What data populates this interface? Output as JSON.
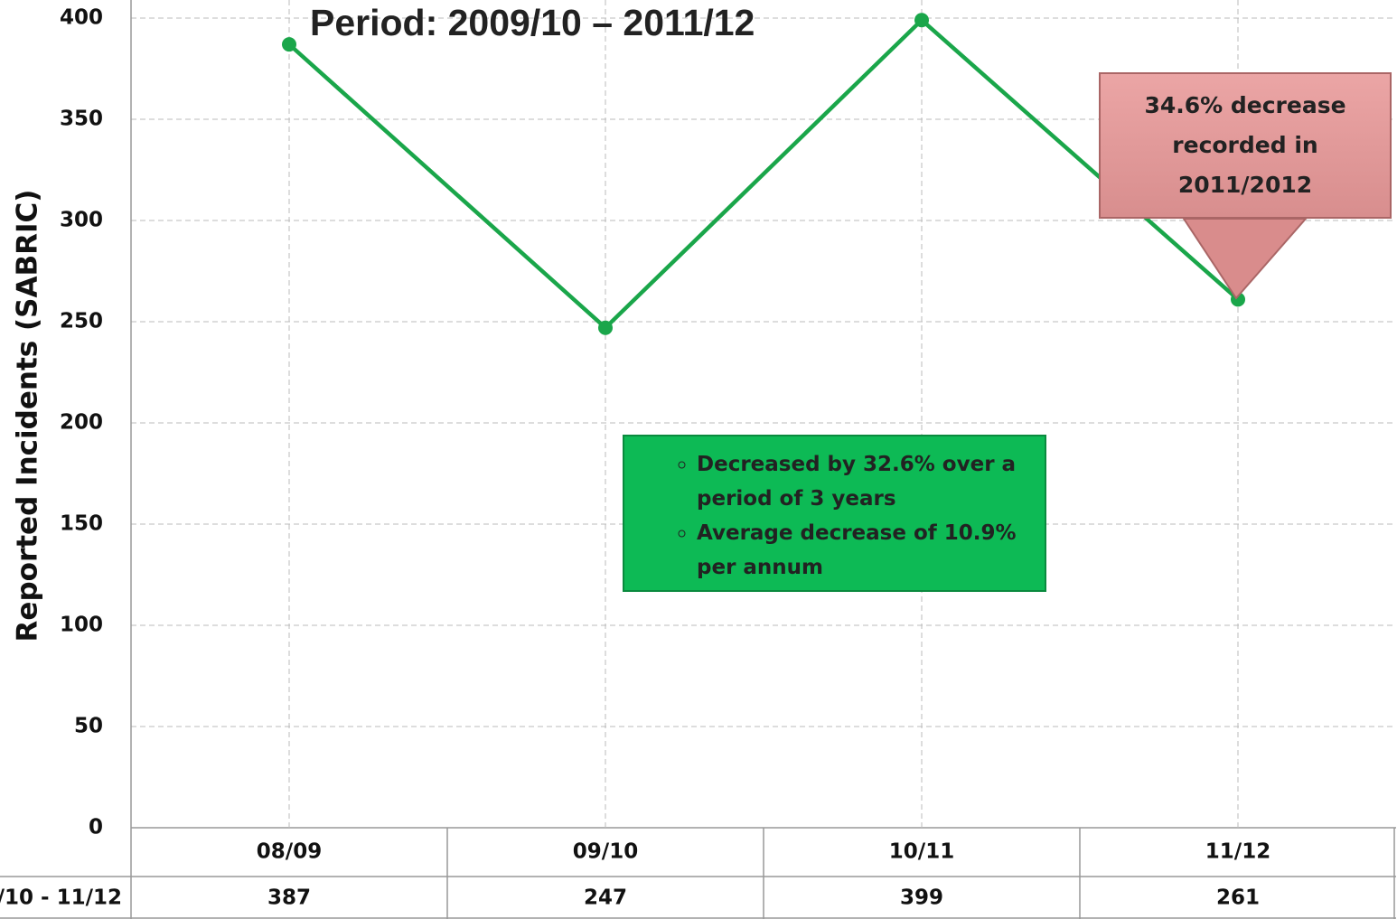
{
  "chart_data": {
    "type": "line",
    "title": "Period: 2009/10 – 2011/12",
    "y_label": "Reported Incidents (SABRIC)",
    "categories": [
      "08/09",
      "09/10",
      "10/11",
      "11/12"
    ],
    "series": [
      {
        "name": "/10 - 11/12",
        "color": "#1aa64a",
        "values": [
          387,
          247,
          399,
          261
        ]
      }
    ],
    "ylim": [
      0,
      400
    ],
    "yticks": [
      0,
      50,
      100,
      150,
      200,
      250,
      300,
      350,
      400
    ],
    "grid": true,
    "callout": {
      "lines": [
        "34.6% decrease",
        "recorded in",
        "2011/2012"
      ]
    },
    "notes": [
      "Decreased by 32.6% over a period of 3 years",
      "Average decrease of 10.9% per annum"
    ]
  }
}
